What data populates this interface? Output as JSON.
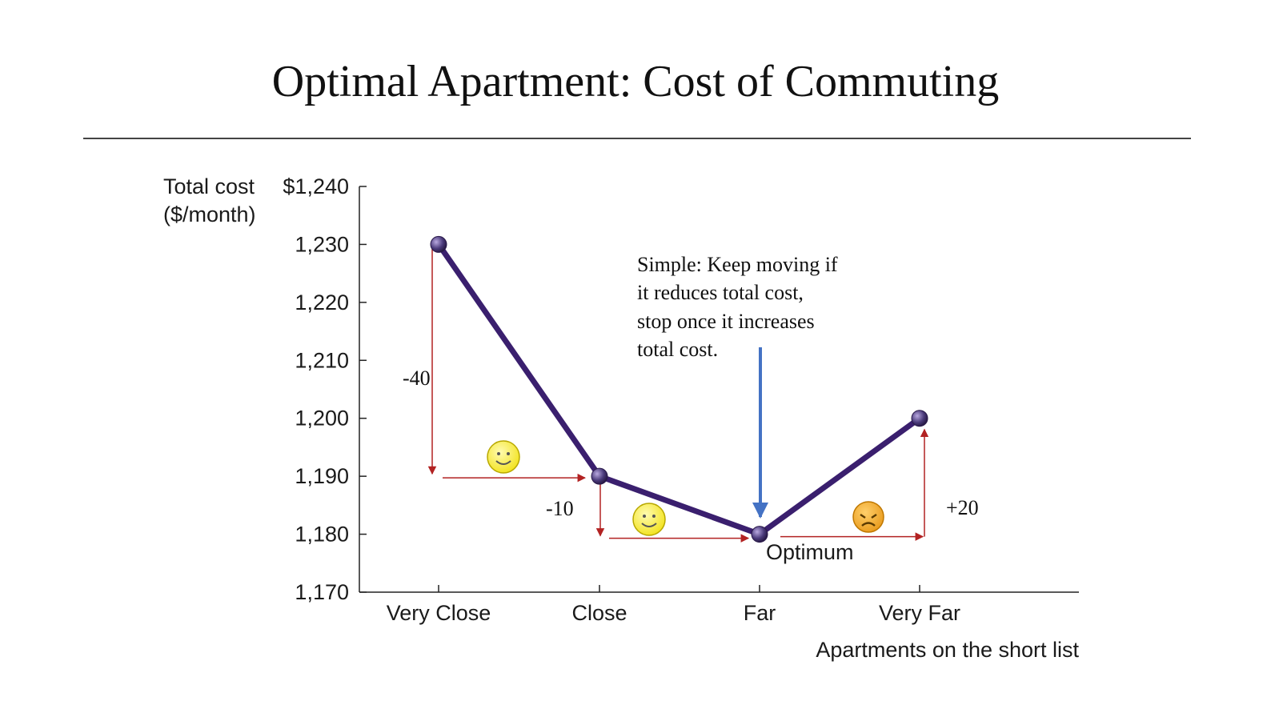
{
  "slide": {
    "title": "Optimal Apartment: Cost of Commuting"
  },
  "chart_data": {
    "type": "line",
    "ylabel": "Total cost ($/month)",
    "ylabel_lines": [
      "Total cost",
      "($/month)"
    ],
    "xlabel": "Apartments on the short list",
    "categories": [
      "Very Close",
      "Close",
      "Far",
      "Very Far"
    ],
    "values": [
      1230,
      1190,
      1180,
      1200
    ],
    "ylim": [
      1170,
      1240
    ],
    "yticks": [
      1170,
      1180,
      1190,
      1200,
      1210,
      1220,
      1230,
      1240
    ],
    "ytick_labels": [
      "1,170",
      "1,180",
      "1,190",
      "1,200",
      "1,210",
      "1,220",
      "1,230",
      "$1,240"
    ],
    "grid": false,
    "line_color": "#3a1f6e",
    "point_color": "#4a3a7a",
    "annotations": {
      "optimum_label": "Optimum",
      "optimum_index": 2,
      "deltas": [
        {
          "text": "-40",
          "from": 0,
          "to": 1
        },
        {
          "text": "-10",
          "from": 1,
          "to": 2
        },
        {
          "text": "+20",
          "from": 2,
          "to": 3
        }
      ],
      "note_lines": [
        "Simple: Keep moving if",
        "it reduces total cost,",
        "stop once it increases",
        "total cost."
      ],
      "note_arrow_color": "#4472c4",
      "delta_arrow_color": "#b22222",
      "faces": [
        "happy",
        "happy",
        "sad"
      ]
    }
  }
}
